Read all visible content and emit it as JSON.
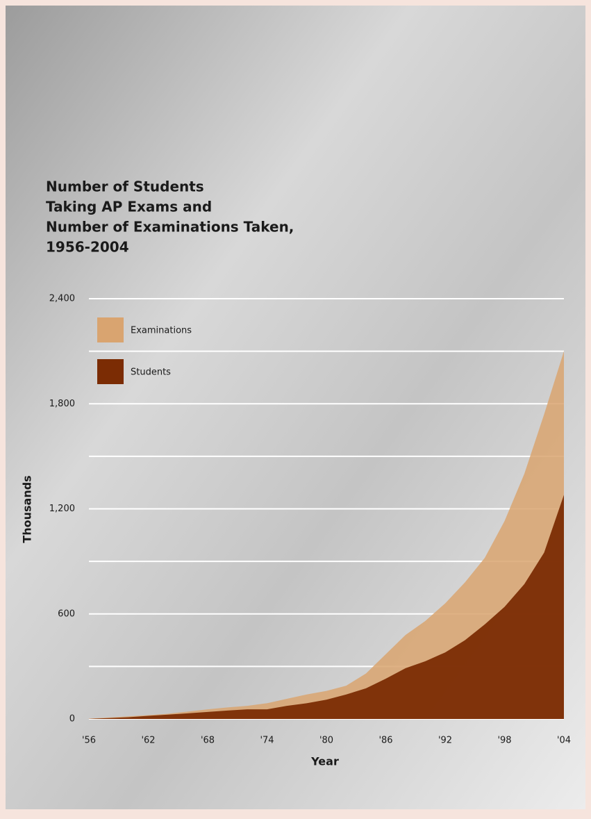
{
  "chart_data": {
    "type": "area",
    "title": [
      "Number of Students",
      "Taking AP Exams and",
      "Number of Examinations Taken,",
      "1956-2004"
    ],
    "x_label": "Year",
    "y_label": "Thousands",
    "x": [
      1956,
      1958,
      1960,
      1962,
      1964,
      1966,
      1968,
      1970,
      1972,
      1974,
      1976,
      1978,
      1980,
      1982,
      1984,
      1986,
      1988,
      1990,
      1992,
      1994,
      1996,
      1998,
      2000,
      2002,
      2004
    ],
    "series": [
      {
        "name": "Examinations",
        "color": "#d9a470",
        "values": [
          2,
          8,
          15,
          22,
          30,
          42,
          55,
          66,
          75,
          90,
          115,
          140,
          160,
          190,
          260,
          370,
          480,
          560,
          660,
          780,
          920,
          1130,
          1400,
          1740,
          2100
        ]
      },
      {
        "name": "Students",
        "color": "#7b2c04",
        "values": [
          1,
          5,
          10,
          18,
          25,
          32,
          40,
          48,
          55,
          55,
          75,
          90,
          110,
          140,
          175,
          230,
          290,
          330,
          380,
          450,
          540,
          640,
          770,
          950,
          1280
        ]
      }
    ],
    "xlim": [
      1956,
      2004
    ],
    "xticks": [
      {
        "value": 1956,
        "label": "'56"
      },
      {
        "value": 1962,
        "label": "'62"
      },
      {
        "value": 1968,
        "label": "'68"
      },
      {
        "value": 1974,
        "label": "'74"
      },
      {
        "value": 1980,
        "label": "'80"
      },
      {
        "value": 1986,
        "label": "'86"
      },
      {
        "value": 1992,
        "label": "'92"
      },
      {
        "value": 1998,
        "label": "'98"
      },
      {
        "value": 2004,
        "label": "'04"
      }
    ],
    "ylim": [
      0,
      2400
    ],
    "yticks": [
      0,
      600,
      {
        "value": 1200,
        "label": "1,200"
      },
      {
        "value": 1800,
        "label": "1,800"
      },
      {
        "value": 2400,
        "label": "2,400"
      }
    ],
    "minor_gridlines": [
      300,
      900,
      1500,
      2100
    ],
    "grid": true
  }
}
